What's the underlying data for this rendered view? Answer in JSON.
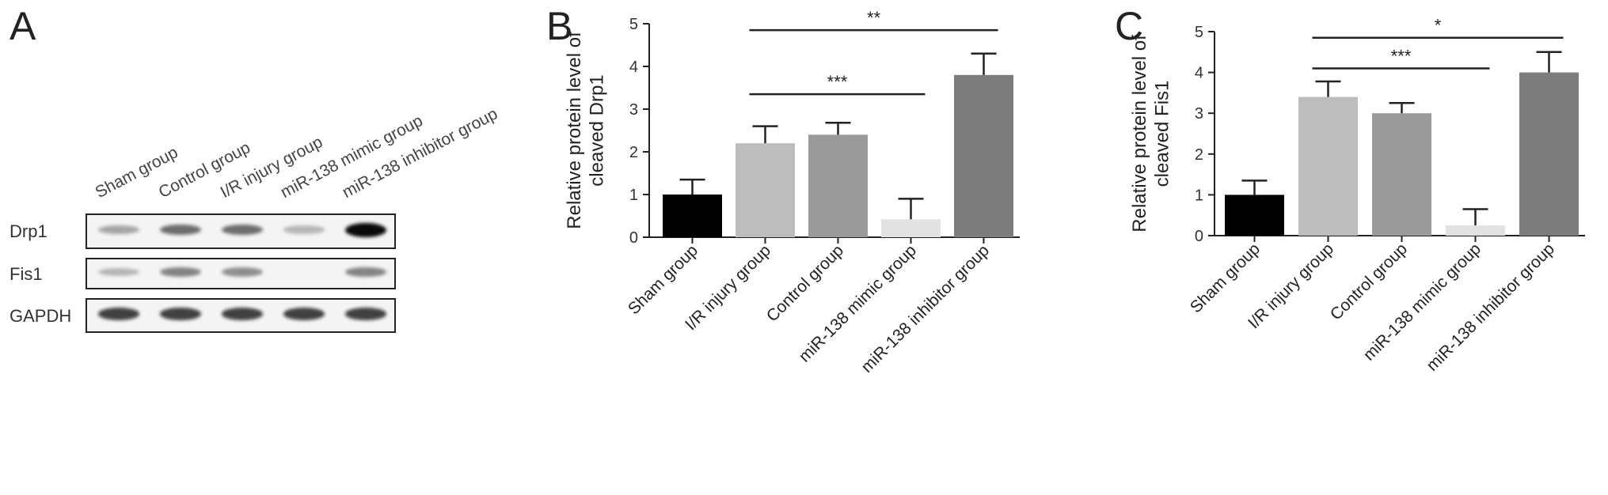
{
  "panel_a": {
    "letter": "A",
    "lane_labels": [
      "Sham group",
      "Control group",
      "I/R injury group",
      "miR-138 mimic group",
      "miR-138 inhibitor group"
    ],
    "rows": [
      {
        "label": "Drp1",
        "intensities": [
          0.3,
          0.55,
          0.55,
          0.22,
          1.0
        ]
      },
      {
        "label": "Fis1",
        "intensities": [
          0.22,
          0.45,
          0.4,
          0.0,
          0.45
        ]
      },
      {
        "label": "GAPDH",
        "intensities": [
          0.75,
          0.75,
          0.75,
          0.75,
          0.75
        ]
      }
    ]
  },
  "chart_data": [
    {
      "letter": "B",
      "type": "bar",
      "categories": [
        "Sham group",
        "I/R injury group",
        "Control group",
        "miR-138 mimic group",
        "miR-138 inhibitor group"
      ],
      "values": [
        1.0,
        2.2,
        2.4,
        0.42,
        3.8
      ],
      "errors": [
        0.35,
        0.4,
        0.28,
        0.48,
        0.5
      ],
      "bar_colors": [
        "#000000",
        "#bdbdbd",
        "#9a9a9a",
        "#e2e2e2",
        "#7d7d7d"
      ],
      "ylabel": "Relative protein level of\ncleaved Drp1",
      "ylim": [
        0,
        5
      ],
      "yticks": [
        0,
        1,
        2,
        3,
        4,
        5
      ],
      "significance": [
        {
          "from": 1,
          "to": 3,
          "y": 3.35,
          "label": "***"
        },
        {
          "from": 1,
          "to": 4,
          "y": 4.85,
          "label": "**"
        }
      ]
    },
    {
      "letter": "C",
      "type": "bar",
      "categories": [
        "Sham group",
        "I/R injury group",
        "Control group",
        "miR-138 mimic group",
        "miR-138 inhibitor group"
      ],
      "values": [
        1.0,
        3.4,
        3.0,
        0.25,
        4.0
      ],
      "errors": [
        0.35,
        0.38,
        0.25,
        0.4,
        0.5
      ],
      "bar_colors": [
        "#000000",
        "#bdbdbd",
        "#9a9a9a",
        "#e2e2e2",
        "#7d7d7d"
      ],
      "ylabel": "Relative protein level of\ncleaved Fis1",
      "ylim": [
        0,
        5
      ],
      "yticks": [
        0,
        1,
        2,
        3,
        4,
        5
      ],
      "significance": [
        {
          "from": 1,
          "to": 3,
          "y": 4.1,
          "label": "***"
        },
        {
          "from": 1,
          "to": 4,
          "y": 4.85,
          "label": "*"
        }
      ]
    }
  ]
}
